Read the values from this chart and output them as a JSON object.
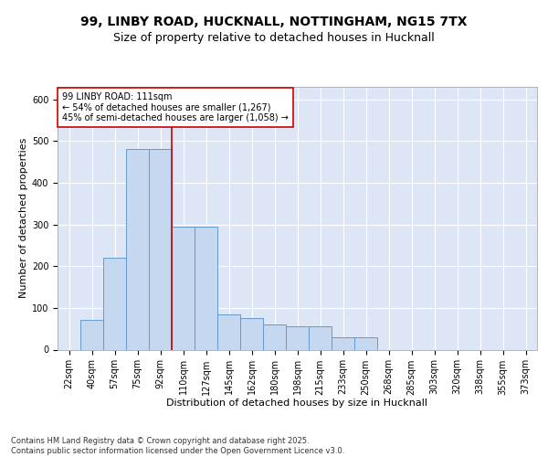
{
  "title_line1": "99, LINBY ROAD, HUCKNALL, NOTTINGHAM, NG15 7TX",
  "title_line2": "Size of property relative to detached houses in Hucknall",
  "xlabel": "Distribution of detached houses by size in Hucknall",
  "ylabel": "Number of detached properties",
  "bin_labels": [
    "22sqm",
    "40sqm",
    "57sqm",
    "75sqm",
    "92sqm",
    "110sqm",
    "127sqm",
    "145sqm",
    "162sqm",
    "180sqm",
    "198sqm",
    "215sqm",
    "233sqm",
    "250sqm",
    "268sqm",
    "285sqm",
    "303sqm",
    "320sqm",
    "338sqm",
    "355sqm",
    "373sqm"
  ],
  "bar_values": [
    0,
    72,
    220,
    480,
    480,
    295,
    295,
    85,
    75,
    60,
    55,
    55,
    30,
    30,
    0,
    0,
    0,
    0,
    0,
    0,
    0
  ],
  "bar_color": "#c5d8f0",
  "bar_edge_color": "#6699cc",
  "bg_color": "#dce6f5",
  "grid_color": "#ffffff",
  "vline_x_idx": 4.5,
  "vline_color": "#cc0000",
  "annotation_text": "99 LINBY ROAD: 111sqm\n← 54% of detached houses are smaller (1,267)\n45% of semi-detached houses are larger (1,058) →",
  "annotation_box_color": "#cc0000",
  "ylim": [
    0,
    630
  ],
  "yticks": [
    0,
    100,
    200,
    300,
    400,
    500,
    600
  ],
  "footnote": "Contains HM Land Registry data © Crown copyright and database right 2025.\nContains public sector information licensed under the Open Government Licence v3.0.",
  "fig_facecolor": "#ffffff",
  "title_fontsize": 10,
  "subtitle_fontsize": 9,
  "axis_label_fontsize": 8,
  "tick_fontsize": 7,
  "annotation_fontsize": 7,
  "footnote_fontsize": 6
}
